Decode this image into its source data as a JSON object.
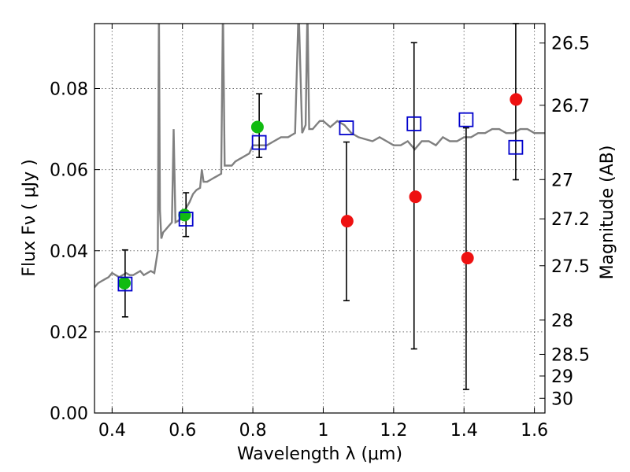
{
  "chart_data": {
    "type": "scatter",
    "title": "",
    "xlabel": "Wavelength  λ (μm)",
    "ylabel": "Flux  Fν  ( μJy )",
    "y2label": "Magnitude (AB)",
    "xlim": [
      0.35,
      1.63
    ],
    "ylim": [
      0.0,
      0.096
    ],
    "grid": true,
    "x_ticks": [
      {
        "value": 0.4,
        "label": "0.4"
      },
      {
        "value": 0.6,
        "label": "0.6"
      },
      {
        "value": 0.8,
        "label": "0.8"
      },
      {
        "value": 1.0,
        "label": "1"
      },
      {
        "value": 1.2,
        "label": "1.2"
      },
      {
        "value": 1.4,
        "label": "1.4"
      },
      {
        "value": 1.6,
        "label": "1.6"
      }
    ],
    "y_ticks": [
      {
        "value": 0.0,
        "label": "0.00"
      },
      {
        "value": 0.02,
        "label": "0.02"
      },
      {
        "value": 0.04,
        "label": "0.04"
      },
      {
        "value": 0.06,
        "label": "0.06"
      },
      {
        "value": 0.08,
        "label": "0.08"
      }
    ],
    "y2_ticks": [
      {
        "value": 26.5,
        "label": "26.5"
      },
      {
        "value": 26.7,
        "label": "26.7"
      },
      {
        "value": 27.0,
        "label": "27"
      },
      {
        "value": 27.2,
        "label": "27.2"
      },
      {
        "value": 27.5,
        "label": "27.5"
      },
      {
        "value": 28.0,
        "label": "28"
      },
      {
        "value": 28.5,
        "label": "28.5"
      },
      {
        "value": 29.0,
        "label": "29"
      },
      {
        "value": 30.0,
        "label": "30"
      }
    ],
    "colors": {
      "model": "#808080",
      "green": "#11bb11",
      "red": "#ee1111",
      "blue": "#0000cc",
      "errorbar": "#000000"
    },
    "series": [
      {
        "kind": "model-spectrum",
        "x": [
          0.35,
          0.36,
          0.37,
          0.38,
          0.39,
          0.4,
          0.41,
          0.42,
          0.43,
          0.44,
          0.45,
          0.46,
          0.47,
          0.48,
          0.49,
          0.5,
          0.51,
          0.52,
          0.53,
          0.533,
          0.536,
          0.54,
          0.545,
          0.55,
          0.56,
          0.57,
          0.575,
          0.58,
          0.59,
          0.6,
          0.61,
          0.62,
          0.63,
          0.64,
          0.65,
          0.655,
          0.66,
          0.67,
          0.68,
          0.69,
          0.7,
          0.71,
          0.715,
          0.72,
          0.73,
          0.74,
          0.75,
          0.76,
          0.77,
          0.78,
          0.79,
          0.8,
          0.82,
          0.84,
          0.86,
          0.88,
          0.9,
          0.92,
          0.93,
          0.94,
          0.95,
          0.955,
          0.96,
          0.97,
          0.98,
          0.99,
          1.0,
          1.02,
          1.04,
          1.06,
          1.08,
          1.1,
          1.12,
          1.14,
          1.16,
          1.18,
          1.2,
          1.22,
          1.24,
          1.25,
          1.26,
          1.28,
          1.3,
          1.32,
          1.34,
          1.36,
          1.38,
          1.4,
          1.42,
          1.44,
          1.46,
          1.48,
          1.5,
          1.52,
          1.54,
          1.56,
          1.58,
          1.6,
          1.63
        ],
        "y": [
          0.031,
          0.032,
          0.0325,
          0.033,
          0.0335,
          0.0345,
          0.034,
          0.0335,
          0.034,
          0.0345,
          0.034,
          0.034,
          0.0345,
          0.035,
          0.034,
          0.0345,
          0.035,
          0.0345,
          0.04,
          0.1,
          0.05,
          0.043,
          0.0445,
          0.045,
          0.046,
          0.047,
          0.07,
          0.047,
          0.0475,
          0.048,
          0.0505,
          0.052,
          0.054,
          0.055,
          0.0555,
          0.06,
          0.057,
          0.057,
          0.0575,
          0.058,
          0.0585,
          0.059,
          0.1,
          0.061,
          0.061,
          0.061,
          0.062,
          0.0625,
          0.063,
          0.0635,
          0.064,
          0.066,
          0.066,
          0.066,
          0.067,
          0.068,
          0.068,
          0.069,
          0.1,
          0.069,
          0.071,
          0.1,
          0.07,
          0.07,
          0.071,
          0.072,
          0.072,
          0.0705,
          0.072,
          0.071,
          0.069,
          0.068,
          0.0675,
          0.067,
          0.068,
          0.067,
          0.066,
          0.066,
          0.067,
          0.066,
          0.065,
          0.067,
          0.067,
          0.066,
          0.068,
          0.067,
          0.067,
          0.068,
          0.068,
          0.069,
          0.069,
          0.07,
          0.07,
          0.069,
          0.069,
          0.07,
          0.07,
          0.069,
          0.069
        ]
      },
      {
        "kind": "green-points",
        "x": [
          0.435,
          0.606,
          0.813
        ],
        "y": [
          0.032,
          0.0488,
          0.0705
        ]
      },
      {
        "kind": "red-points",
        "x": [
          1.068,
          1.262,
          1.41,
          1.548
        ],
        "y": [
          0.0473,
          0.0533,
          0.0382,
          0.0773
        ]
      },
      {
        "kind": "blue-squares",
        "x": [
          0.437,
          0.61,
          0.818,
          1.066,
          1.258,
          1.406,
          1.547
        ],
        "y": [
          0.0318,
          0.0478,
          0.0667,
          0.0703,
          0.0713,
          0.0723,
          0.0655
        ]
      },
      {
        "kind": "errorbars",
        "x": [
          0.437,
          0.61,
          0.818,
          1.066,
          1.258,
          1.406,
          1.547
        ],
        "low": [
          0.0237,
          0.0435,
          0.063,
          0.0277,
          0.0158,
          0.0058,
          0.0575
        ],
        "high": [
          0.0402,
          0.0543,
          0.0787,
          0.0668,
          0.0913,
          0.0703,
          0.096
        ]
      }
    ]
  }
}
